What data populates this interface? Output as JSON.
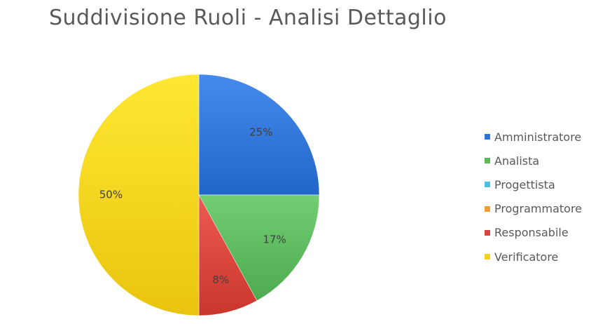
{
  "chart_data": {
    "type": "pie",
    "title": "Suddivisione Ruoli - Analisi Dettaglio",
    "categories": [
      "Amministratore",
      "Analista",
      "Progettista",
      "Programmatore",
      "Responsabile",
      "Verificatore"
    ],
    "values": [
      25,
      17,
      0,
      0,
      8,
      50
    ],
    "data_labels": [
      "25%",
      "17%",
      "",
      "",
      "8%",
      "50%"
    ],
    "colors": [
      "#2f74d6",
      "#5cb85c",
      "#4bbfd9",
      "#f0a030",
      "#d9443a",
      "#f7d21c"
    ],
    "legend_position": "right"
  }
}
